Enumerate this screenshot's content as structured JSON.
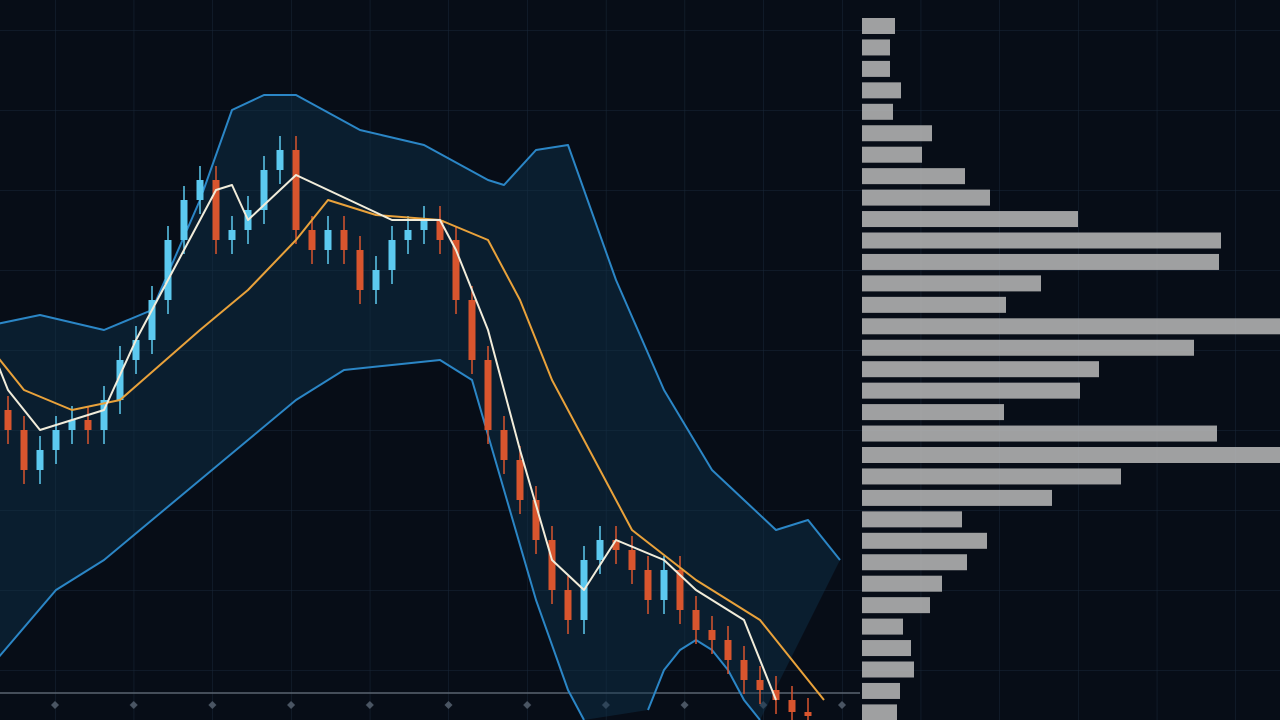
{
  "chart_data": [
    {
      "type": "candlestick",
      "x": [
        0,
        1,
        2,
        3,
        4,
        5,
        6,
        7,
        8,
        9,
        10,
        11,
        12,
        13,
        14,
        15,
        16,
        17,
        18,
        19,
        20,
        21,
        22,
        23,
        24,
        25,
        26,
        27,
        28,
        29,
        30,
        31,
        32,
        33,
        34,
        35,
        36,
        37,
        38,
        39,
        40,
        41,
        42,
        43,
        44,
        45,
        46,
        47,
        48,
        49,
        50
      ],
      "open": [
        310,
        290,
        250,
        270,
        290,
        300,
        290,
        320,
        360,
        380,
        420,
        480,
        520,
        540,
        480,
        490,
        510,
        550,
        570,
        490,
        470,
        490,
        470,
        430,
        450,
        480,
        490,
        500,
        480,
        420,
        360,
        290,
        260,
        220,
        180,
        130,
        100,
        160,
        180,
        170,
        150,
        120,
        150,
        110,
        90,
        80,
        60,
        40,
        30,
        20,
        8
      ],
      "high": [
        324,
        304,
        284,
        304,
        314,
        314,
        334,
        374,
        394,
        434,
        494,
        534,
        554,
        554,
        504,
        524,
        564,
        584,
        584,
        504,
        504,
        504,
        484,
        464,
        494,
        504,
        514,
        514,
        494,
        434,
        374,
        304,
        274,
        234,
        194,
        144,
        174,
        194,
        194,
        184,
        164,
        164,
        164,
        124,
        104,
        94,
        74,
        54,
        44,
        34,
        22
      ],
      "low": [
        276,
        236,
        236,
        256,
        276,
        276,
        276,
        306,
        346,
        366,
        406,
        466,
        506,
        466,
        466,
        476,
        496,
        536,
        476,
        456,
        456,
        456,
        416,
        416,
        436,
        466,
        476,
        466,
        406,
        346,
        276,
        246,
        206,
        166,
        116,
        86,
        86,
        146,
        156,
        136,
        106,
        106,
        96,
        76,
        66,
        46,
        26,
        16,
        6,
        -6,
        -10
      ],
      "close": [
        290,
        250,
        270,
        290,
        300,
        290,
        320,
        360,
        380,
        420,
        480,
        520,
        540,
        480,
        490,
        510,
        550,
        570,
        490,
        470,
        490,
        470,
        430,
        450,
        480,
        490,
        500,
        480,
        420,
        360,
        290,
        260,
        220,
        180,
        130,
        100,
        160,
        180,
        170,
        150,
        120,
        150,
        110,
        90,
        80,
        60,
        40,
        30,
        20,
        8,
        4
      ],
      "up_color": "#5cc9ef",
      "down_color": "#d8552e",
      "band_fill": "#10324d",
      "xlim": [
        -0.5,
        53.25
      ],
      "ylim": [
        0,
        720
      ],
      "series": [
        {
          "color": "#2b86c6",
          "x": [
            -1,
            2,
            6,
            9,
            12,
            14,
            16,
            18,
            22,
            26,
            30,
            31,
            33,
            35,
            38,
            41,
            44,
            46,
            48,
            50,
            52
          ],
          "values": [
            395,
            405,
            390,
            410,
            520,
            610,
            625,
            625,
            590,
            575,
            540,
            535,
            570,
            575,
            440,
            330,
            250,
            220,
            190,
            200,
            160
          ]
        },
        {
          "color": "#2b86c6",
          "x": [
            -1,
            3,
            6,
            9,
            12,
            15,
            18,
            21,
            24,
            27,
            29,
            31,
            33,
            35,
            36,
            38,
            40,
            41,
            42,
            43,
            44,
            45,
            46,
            47
          ],
          "values": [
            55,
            130,
            160,
            200,
            240,
            280,
            320,
            350,
            355,
            360,
            340,
            230,
            120,
            30,
            0,
            null,
            10,
            50,
            70,
            80,
            70,
            50,
            20,
            0
          ]
        },
        {
          "color": "#e9a23b",
          "x": [
            -1,
            1,
            4,
            7,
            12,
            15,
            18,
            20,
            23,
            27,
            30,
            32,
            34,
            37,
            39,
            41,
            43,
            47,
            49,
            51
          ],
          "values": [
            370,
            330,
            310,
            320,
            390,
            430,
            480,
            520,
            505,
            500,
            480,
            420,
            340,
            250,
            190,
            165,
            140,
            100,
            60,
            20
          ]
        },
        {
          "color": "#f1ecda",
          "x": [
            -1,
            0,
            2,
            6,
            8,
            11,
            13,
            14,
            15,
            18,
            20,
            24,
            27,
            28,
            30,
            32,
            34,
            36,
            38,
            41,
            43,
            46,
            48
          ],
          "values": [
            370,
            330,
            290,
            310,
            380,
            470,
            530,
            535,
            500,
            545,
            530,
            500,
            500,
            470,
            390,
            270,
            160,
            130,
            180,
            160,
            130,
            100,
            20
          ]
        }
      ]
    },
    {
      "type": "bar",
      "orientation": "horizontal",
      "color": "#b5b5b5",
      "xlim": [
        0,
        420
      ],
      "values": [
        33,
        28,
        28,
        39,
        31,
        70,
        60,
        103,
        128,
        216,
        359,
        357,
        179,
        144,
        420,
        332,
        237,
        218,
        142,
        355,
        420,
        259,
        190,
        100,
        125,
        105,
        80,
        68,
        41,
        49,
        52,
        38,
        35
      ]
    }
  ]
}
